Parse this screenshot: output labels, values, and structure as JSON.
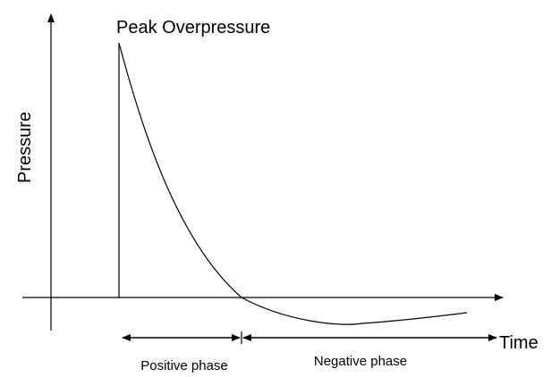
{
  "title": "Peak Overpressure",
  "y_axis_label": "Pressure",
  "x_axis_label": "Time",
  "phases": [
    {
      "label": "Positive phase"
    },
    {
      "label": "Negative phase"
    }
  ]
}
